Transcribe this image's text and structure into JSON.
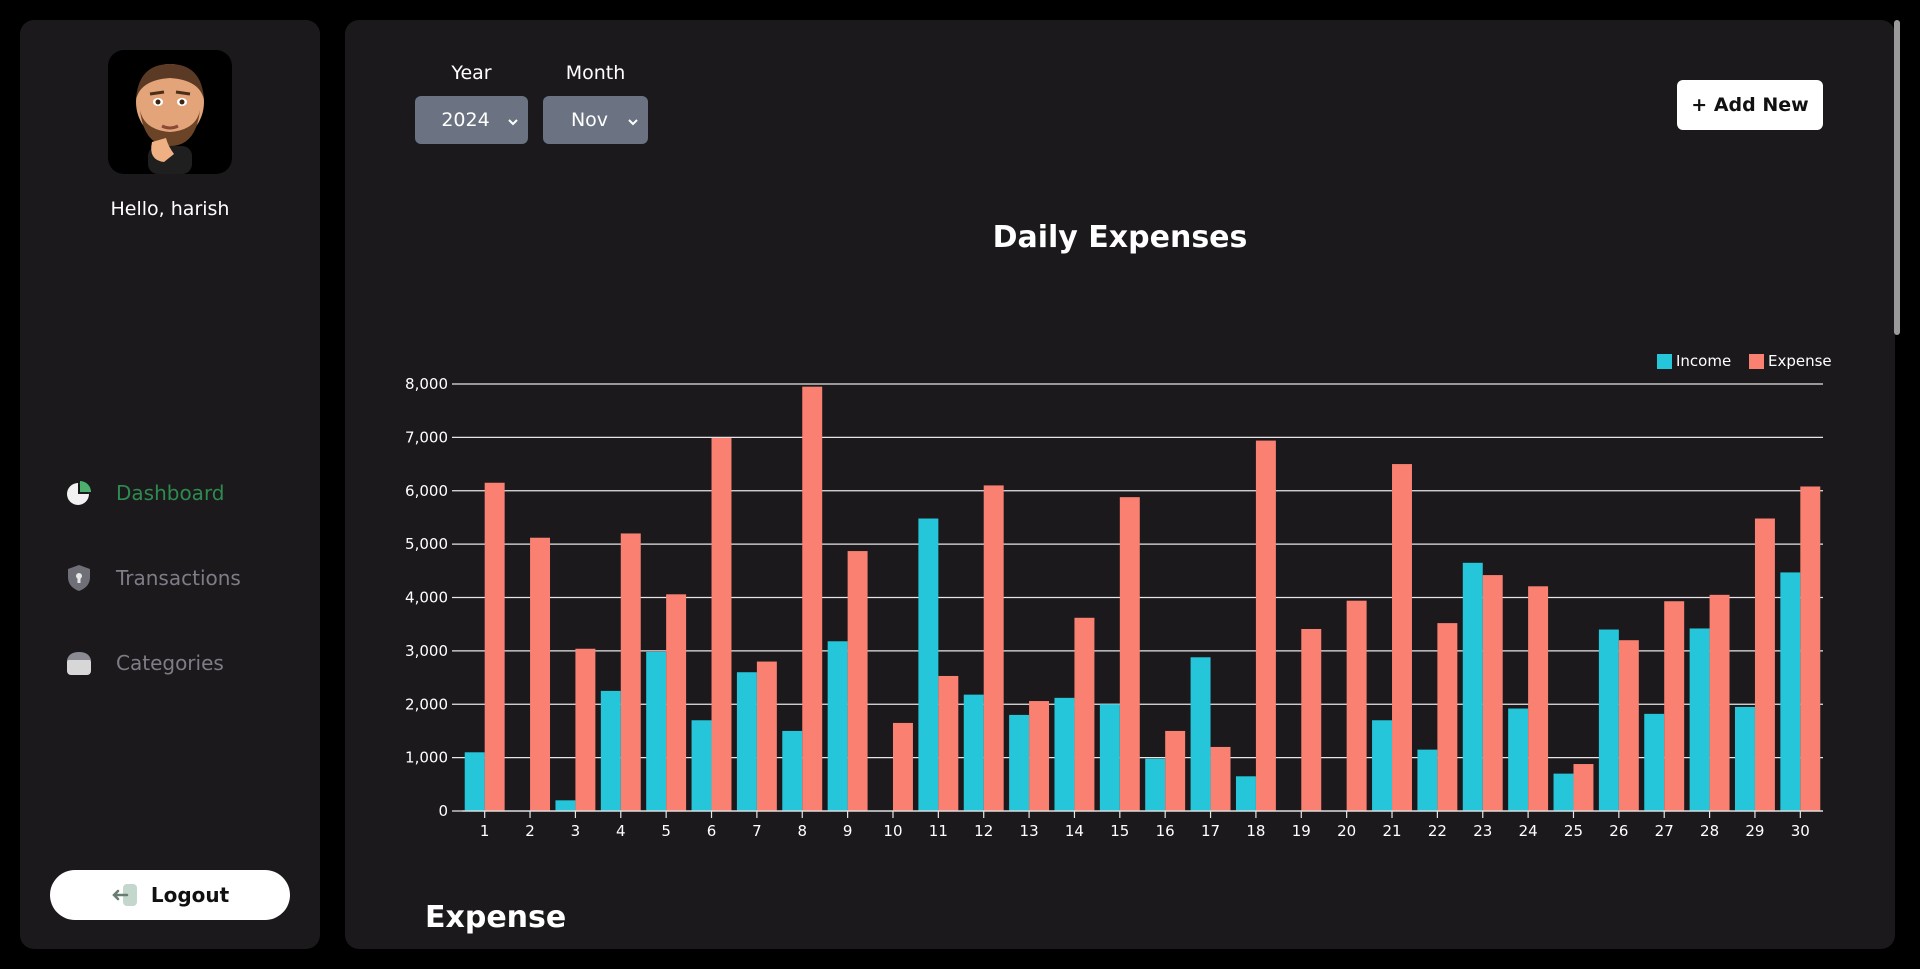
{
  "sidebar": {
    "greeting": "Hello, harish",
    "nav": [
      {
        "label": "Dashboard",
        "icon": "pie-chart-icon",
        "active": true
      },
      {
        "label": "Transactions",
        "icon": "shield-icon",
        "active": false
      },
      {
        "label": "Categories",
        "icon": "box-icon",
        "active": false
      }
    ],
    "logout_label": "Logout"
  },
  "filters": {
    "year_label": "Year",
    "year_value": "2024",
    "month_label": "Month",
    "month_value": "Nov"
  },
  "add_new_label": "+ Add New",
  "chart_title": "Daily Expenses",
  "section_title": "Expense",
  "colors": {
    "income": "#26c6da",
    "expense": "#fa8072",
    "active_nav": "#2e8b4f"
  },
  "chart_data": {
    "type": "bar",
    "title": "Daily Expenses",
    "xlabel": "",
    "ylabel": "",
    "ylim": [
      0,
      8000
    ],
    "yticks": [
      0,
      1000,
      2000,
      3000,
      4000,
      5000,
      6000,
      7000,
      8000
    ],
    "grid": true,
    "legend_position": "top-right",
    "categories": [
      "1",
      "2",
      "3",
      "4",
      "5",
      "6",
      "7",
      "8",
      "9",
      "10",
      "11",
      "12",
      "13",
      "14",
      "15",
      "16",
      "17",
      "18",
      "19",
      "20",
      "21",
      "22",
      "23",
      "24",
      "25",
      "26",
      "27",
      "28",
      "29",
      "30"
    ],
    "series": [
      {
        "name": "Income",
        "color": "#26c6da",
        "values": [
          1100,
          0,
          200,
          2250,
          2980,
          1700,
          2600,
          1500,
          3180,
          0,
          5480,
          2180,
          1800,
          2120,
          2000,
          980,
          2880,
          650,
          0,
          0,
          1700,
          1150,
          4650,
          1920,
          700,
          3400,
          1820,
          3420,
          1950,
          4470
        ]
      },
      {
        "name": "Expense",
        "color": "#fa8072",
        "values": [
          6150,
          5120,
          3040,
          5200,
          4060,
          6990,
          2800,
          7950,
          4870,
          1650,
          2530,
          6100,
          2060,
          3620,
          5880,
          1500,
          1200,
          6940,
          3410,
          3940,
          6500,
          3520,
          4420,
          4210,
          880,
          3200,
          3930,
          4050,
          5480,
          6080
        ]
      }
    ]
  }
}
